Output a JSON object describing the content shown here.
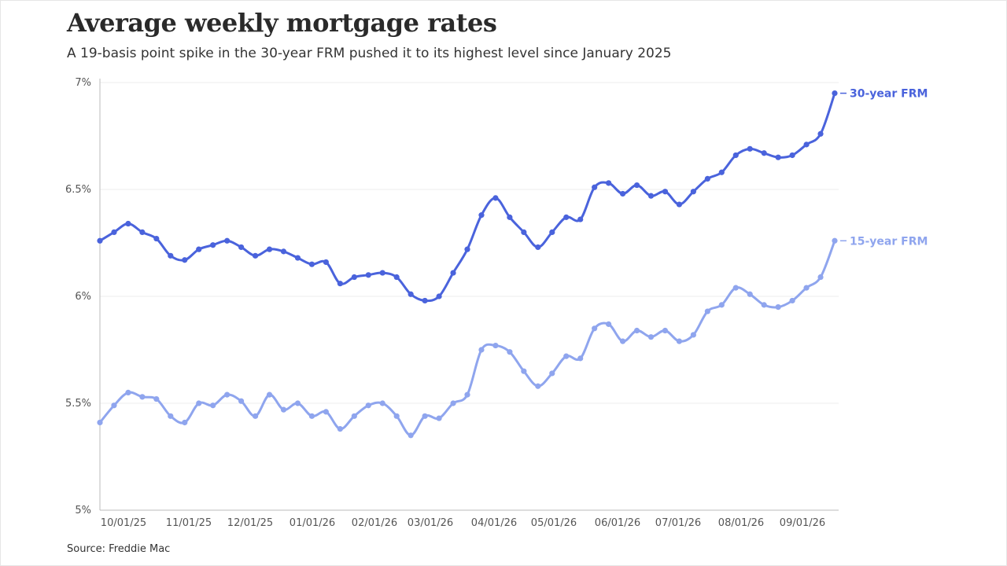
{
  "header": {
    "title": "Average weekly mortgage rates",
    "subtitle": "A 19-basis point spike in the 30-year FRM pushed it to its highest level since January 2025"
  },
  "footer": {
    "source": "Source: Freddie Mac"
  },
  "colors": {
    "series_30": "#4a63dc",
    "series_15": "#8fa5ee",
    "grid": "#eeeeee",
    "axis": "#bbbbbb"
  },
  "chart_data": {
    "type": "line",
    "title": "Average weekly mortgage rates",
    "subtitle": "A 19-basis point spike in the 30-year FRM pushed it to its highest level since January 2025",
    "xlabel": "",
    "ylabel": "",
    "ylim": [
      5,
      7
    ],
    "yticks": [
      5,
      5.5,
      6,
      6.5,
      7
    ],
    "ytick_labels": [
      "5%",
      "5.5%",
      "6%",
      "6.5%",
      "7%"
    ],
    "xtick_labels": [
      "10/01/25",
      "11/01/25",
      "12/01/25",
      "01/01/26",
      "02/01/26",
      "03/01/26",
      "04/01/26",
      "05/01/26",
      "06/01/26",
      "07/01/26",
      "08/01/26",
      "09/01/26"
    ],
    "grid": true,
    "legend": "end-of-line labels",
    "series": [
      {
        "name": "30-year FRM",
        "values": [
          6.26,
          6.3,
          6.34,
          6.3,
          6.27,
          6.19,
          6.17,
          6.22,
          6.24,
          6.26,
          6.23,
          6.19,
          6.22,
          6.21,
          6.18,
          6.15,
          6.16,
          6.06,
          6.09,
          6.1,
          6.11,
          6.09,
          6.01,
          5.98,
          6.0,
          6.11,
          6.22,
          6.38,
          6.46,
          6.37,
          6.3,
          6.23,
          6.3,
          6.37,
          6.36,
          6.51,
          6.53,
          6.48,
          6.52,
          6.47,
          6.49,
          6.43,
          6.49,
          6.55,
          6.58,
          6.66,
          6.69,
          6.67,
          6.65,
          6.66,
          6.71,
          6.76,
          6.95
        ]
      },
      {
        "name": "15-year FRM",
        "values": [
          5.41,
          5.49,
          5.55,
          5.53,
          5.52,
          5.44,
          5.41,
          5.5,
          5.49,
          5.54,
          5.51,
          5.44,
          5.54,
          5.47,
          5.5,
          5.44,
          5.46,
          5.38,
          5.44,
          5.49,
          5.5,
          5.44,
          5.35,
          5.44,
          5.43,
          5.5,
          5.54,
          5.75,
          5.77,
          5.74,
          5.65,
          5.58,
          5.64,
          5.72,
          5.71,
          5.85,
          5.87,
          5.79,
          5.84,
          5.81,
          5.84,
          5.79,
          5.82,
          5.93,
          5.96,
          6.04,
          6.01,
          5.96,
          5.95,
          5.98,
          6.04,
          6.09,
          6.26
        ]
      }
    ]
  }
}
